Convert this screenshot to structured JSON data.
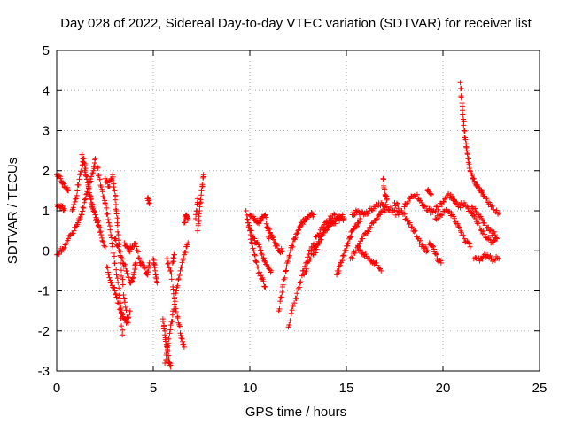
{
  "chart_data": {
    "type": "scatter",
    "title": "Day 028 of 2022, Sidereal Day-to-day VTEC variation (SDTVAR) for receiver list",
    "xlabel": "GPS time / hours",
    "ylabel": "SDTVAR / TECUs",
    "xlim": [
      0,
      25
    ],
    "ylim": [
      -3,
      5
    ],
    "xticks": [
      "0",
      "5",
      "10",
      "15",
      "20",
      "25"
    ],
    "yticks": [
      "-3",
      "-2",
      "-1",
      "0",
      "1",
      "2",
      "3",
      "4",
      "5"
    ],
    "grid": true,
    "marker": "+",
    "color": "#ff0000",
    "series": [
      {
        "name": "SDTVAR",
        "tracks": [
          [
            [
              0.0,
              1.9
            ],
            [
              0.2,
              1.8
            ],
            [
              0.4,
              1.6
            ],
            [
              0.6,
              1.5
            ]
          ],
          [
            [
              0.0,
              1.15
            ],
            [
              0.2,
              1.1
            ],
            [
              0.4,
              1.05
            ]
          ],
          [
            [
              0.0,
              -0.1
            ],
            [
              0.3,
              0.05
            ],
            [
              0.6,
              0.3
            ],
            [
              0.9,
              0.5
            ],
            [
              1.1,
              0.7
            ],
            [
              1.3,
              0.9
            ],
            [
              1.5,
              1.3
            ],
            [
              1.7,
              1.7
            ],
            [
              1.9,
              2.0
            ],
            [
              2.0,
              2.3
            ]
          ],
          [
            [
              0.8,
              1.0
            ],
            [
              1.0,
              1.3
            ],
            [
              1.2,
              1.9
            ],
            [
              1.4,
              2.3
            ],
            [
              1.6,
              1.7
            ],
            [
              1.8,
              1.2
            ],
            [
              2.0,
              0.9
            ],
            [
              2.2,
              0.6
            ]
          ],
          [
            [
              1.3,
              2.4
            ],
            [
              1.5,
              1.9
            ],
            [
              1.7,
              1.4
            ],
            [
              1.9,
              1.0
            ],
            [
              2.1,
              0.7
            ],
            [
              2.3,
              0.4
            ],
            [
              2.5,
              0.1
            ]
          ],
          [
            [
              2.1,
              2.1
            ],
            [
              2.3,
              1.6
            ],
            [
              2.5,
              1.2
            ],
            [
              2.7,
              0.7
            ],
            [
              2.9,
              0.1
            ],
            [
              3.1,
              -0.6
            ],
            [
              3.3,
              -1.3
            ],
            [
              3.4,
              -2.1
            ]
          ],
          [
            [
              2.5,
              1.8
            ],
            [
              2.7,
              1.6
            ],
            [
              2.9,
              1.9
            ],
            [
              3.0,
              1.5
            ],
            [
              3.1,
              1.0
            ],
            [
              3.2,
              0.4
            ],
            [
              3.3,
              -0.3
            ],
            [
              3.5,
              -1.2
            ],
            [
              3.7,
              -1.8
            ]
          ],
          [
            [
              2.6,
              -0.4
            ],
            [
              2.8,
              -0.8
            ],
            [
              3.0,
              -1.0
            ],
            [
              3.2,
              -1.3
            ],
            [
              3.4,
              -1.6
            ],
            [
              3.6,
              -1.8
            ],
            [
              3.8,
              -1.5
            ]
          ],
          [
            [
              3.0,
              0.3
            ],
            [
              3.2,
              0.1
            ],
            [
              3.4,
              -0.2
            ],
            [
              3.6,
              -0.5
            ],
            [
              3.8,
              -0.8
            ],
            [
              4.0,
              -0.6
            ],
            [
              4.1,
              -0.3
            ]
          ],
          [
            [
              3.5,
              0.2
            ],
            [
              3.7,
              0.0
            ],
            [
              3.9,
              0.1
            ],
            [
              4.1,
              0.2
            ],
            [
              4.3,
              -0.3
            ],
            [
              4.5,
              -0.4
            ],
            [
              4.7,
              -0.6
            ],
            [
              4.8,
              -0.3
            ]
          ],
          [
            [
              4.7,
              1.3
            ],
            [
              4.8,
              1.2
            ]
          ],
          [
            [
              5.0,
              -0.2
            ],
            [
              5.1,
              -0.5
            ],
            [
              5.2,
              -0.8
            ]
          ],
          [
            [
              5.5,
              -1.7
            ],
            [
              5.6,
              -2.1
            ],
            [
              5.7,
              -2.4
            ],
            [
              5.8,
              -2.7
            ],
            [
              5.9,
              -2.9
            ]
          ],
          [
            [
              5.6,
              -2.8
            ],
            [
              5.8,
              -2.2
            ],
            [
              6.0,
              -1.6
            ],
            [
              6.2,
              -1.0
            ],
            [
              6.4,
              -0.5
            ],
            [
              6.6,
              -0.1
            ],
            [
              6.8,
              0.2
            ]
          ],
          [
            [
              5.7,
              -0.2
            ],
            [
              5.9,
              -0.5
            ],
            [
              6.1,
              -1.2
            ],
            [
              6.3,
              -1.8
            ],
            [
              6.5,
              -2.2
            ],
            [
              6.6,
              -2.4
            ]
          ],
          [
            [
              6.0,
              -0.3
            ],
            [
              6.1,
              -0.1
            ]
          ],
          [
            [
              6.6,
              0.7
            ],
            [
              6.7,
              0.9
            ],
            [
              6.8,
              0.8
            ]
          ],
          [
            [
              7.3,
              0.5
            ],
            [
              7.4,
              1.0
            ],
            [
              7.5,
              1.5
            ],
            [
              7.6,
              1.9
            ]
          ],
          [
            [
              7.2,
              0.8
            ],
            [
              7.3,
              1.3
            ]
          ],
          [
            [
              9.8,
              1.0
            ],
            [
              10.0,
              0.5
            ],
            [
              10.2,
              0.0
            ],
            [
              10.4,
              -0.4
            ],
            [
              10.6,
              -0.7
            ],
            [
              10.8,
              -0.9
            ]
          ],
          [
            [
              9.9,
              0.7
            ],
            [
              10.1,
              0.4
            ],
            [
              10.3,
              0.2
            ],
            [
              10.5,
              0.1
            ],
            [
              10.7,
              -0.2
            ],
            [
              10.9,
              -0.4
            ],
            [
              11.1,
              -0.5
            ]
          ],
          [
            [
              10.0,
              0.9
            ],
            [
              10.2,
              0.8
            ],
            [
              10.4,
              0.7
            ],
            [
              10.6,
              0.8
            ],
            [
              10.8,
              0.9
            ],
            [
              11.0,
              0.3
            ]
          ],
          [
            [
              10.9,
              0.6
            ],
            [
              11.1,
              0.4
            ],
            [
              11.3,
              0.2
            ],
            [
              11.5,
              0.0
            ],
            [
              11.7,
              0.0
            ]
          ],
          [
            [
              11.5,
              -1.5
            ],
            [
              11.7,
              -0.9
            ],
            [
              11.9,
              -0.4
            ],
            [
              12.1,
              0.0
            ],
            [
              12.3,
              0.3
            ],
            [
              12.5,
              0.5
            ],
            [
              12.7,
              0.7
            ],
            [
              12.9,
              0.8
            ],
            [
              13.1,
              0.9
            ],
            [
              13.3,
              0.9
            ]
          ],
          [
            [
              12.0,
              -1.9
            ],
            [
              12.3,
              -1.3
            ],
            [
              12.6,
              -0.8
            ],
            [
              12.9,
              -0.3
            ],
            [
              13.2,
              0.1
            ],
            [
              13.5,
              0.4
            ],
            [
              13.8,
              0.6
            ],
            [
              14.1,
              0.8
            ],
            [
              14.4,
              0.9
            ]
          ],
          [
            [
              12.8,
              -0.6
            ],
            [
              13.1,
              -0.2
            ],
            [
              13.4,
              0.1
            ],
            [
              13.7,
              0.4
            ],
            [
              14.0,
              0.6
            ],
            [
              14.3,
              0.7
            ],
            [
              14.6,
              0.8
            ],
            [
              14.9,
              0.8
            ]
          ],
          [
            [
              13.3,
              -0.1
            ],
            [
              13.6,
              0.2
            ],
            [
              13.9,
              0.5
            ],
            [
              14.2,
              0.7
            ],
            [
              14.5,
              0.8
            ],
            [
              14.8,
              0.9
            ]
          ],
          [
            [
              14.5,
              -0.6
            ],
            [
              14.7,
              -0.3
            ],
            [
              14.9,
              0.0
            ],
            [
              15.1,
              0.2
            ],
            [
              15.3,
              0.5
            ],
            [
              15.5,
              0.6
            ],
            [
              15.7,
              0.8
            ]
          ],
          [
            [
              15.2,
              -0.2
            ],
            [
              15.5,
              0.0
            ],
            [
              15.8,
              0.3
            ],
            [
              16.1,
              0.5
            ],
            [
              16.4,
              0.7
            ],
            [
              16.7,
              0.9
            ],
            [
              17.0,
              1.0
            ]
          ],
          [
            [
              15.6,
              0.1
            ],
            [
              15.9,
              -0.1
            ],
            [
              16.2,
              -0.2
            ],
            [
              16.5,
              -0.3
            ],
            [
              16.8,
              -0.5
            ]
          ],
          [
            [
              15.3,
              0.9
            ],
            [
              15.6,
              1.0
            ],
            [
              15.9,
              0.9
            ],
            [
              16.2,
              1.0
            ],
            [
              16.5,
              1.1
            ],
            [
              16.8,
              1.2
            ],
            [
              17.1,
              1.1
            ],
            [
              17.4,
              1.0
            ],
            [
              17.7,
              0.9
            ]
          ],
          [
            [
              16.9,
              1.8
            ],
            [
              17.0,
              1.4
            ],
            [
              17.1,
              1.3
            ]
          ],
          [
            [
              17.5,
              1.2
            ],
            [
              17.8,
              1.0
            ],
            [
              18.1,
              0.8
            ],
            [
              18.4,
              0.6
            ],
            [
              18.7,
              0.3
            ],
            [
              19.0,
              0.1
            ],
            [
              19.2,
              0.0
            ]
          ],
          [
            [
              18.0,
              1.1
            ],
            [
              18.3,
              1.3
            ],
            [
              18.6,
              1.4
            ],
            [
              18.9,
              1.2
            ],
            [
              19.2,
              1.0
            ],
            [
              19.5,
              1.0
            ],
            [
              19.8,
              1.1
            ],
            [
              20.1,
              1.3
            ],
            [
              20.4,
              1.4
            ],
            [
              20.7,
              1.2
            ]
          ],
          [
            [
              19.2,
              1.5
            ],
            [
              19.4,
              1.4
            ]
          ],
          [
            [
              19.3,
              0.2
            ],
            [
              19.5,
              0.1
            ],
            [
              19.7,
              -0.2
            ],
            [
              19.9,
              -0.3
            ]
          ],
          [
            [
              19.6,
              0.8
            ],
            [
              19.9,
              0.9
            ],
            [
              20.2,
              1.0
            ],
            [
              20.5,
              0.9
            ],
            [
              20.8,
              0.6
            ],
            [
              21.1,
              0.3
            ],
            [
              21.4,
              0.1
            ]
          ],
          [
            [
              20.5,
              1.3
            ],
            [
              20.8,
              1.1
            ],
            [
              21.1,
              1.2
            ],
            [
              21.4,
              1.0
            ],
            [
              21.7,
              0.8
            ],
            [
              22.0,
              0.5
            ],
            [
              22.3,
              0.3
            ],
            [
              22.6,
              0.2
            ],
            [
              22.8,
              0.3
            ]
          ],
          [
            [
              20.9,
              4.2
            ],
            [
              21.0,
              3.6
            ],
            [
              21.1,
              3.0
            ],
            [
              21.2,
              2.6
            ],
            [
              21.3,
              2.3
            ],
            [
              21.4,
              2.0
            ],
            [
              21.6,
              1.8
            ],
            [
              21.8,
              1.6
            ],
            [
              22.0,
              1.5
            ],
            [
              22.2,
              1.3
            ],
            [
              22.5,
              1.1
            ],
            [
              22.9,
              0.95
            ]
          ],
          [
            [
              21.6,
              -0.2
            ],
            [
              21.9,
              -0.25
            ],
            [
              22.2,
              -0.1
            ],
            [
              22.5,
              -0.2
            ],
            [
              22.9,
              -0.2
            ]
          ],
          [
            [
              21.5,
              1.1
            ],
            [
              21.8,
              0.9
            ],
            [
              22.1,
              0.7
            ],
            [
              22.4,
              0.5
            ],
            [
              22.7,
              0.4
            ]
          ]
        ]
      }
    ]
  }
}
